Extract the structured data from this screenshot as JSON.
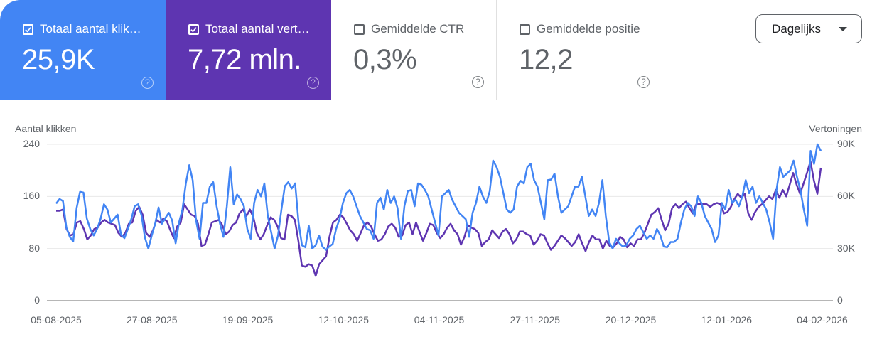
{
  "cards": [
    {
      "label": "Totaal aantal klik…",
      "value": "25,9K",
      "checked": true,
      "color": "#4285f4"
    },
    {
      "label": "Totaal aantal vert…",
      "value": "7,72 mln.",
      "checked": true,
      "color": "#5e35b1"
    },
    {
      "label": "Gemiddelde CTR",
      "value": "0,3%",
      "checked": false
    },
    {
      "label": "Gemiddelde positie",
      "value": "12,2",
      "checked": false
    }
  ],
  "help_glyph": "?",
  "granularity": {
    "selected": "Dagelijks"
  },
  "chart_data": {
    "type": "line",
    "title": "",
    "xlabel": "",
    "ylabel": "Aantal klikken",
    "ylabel_right": "Vertoningen",
    "ylim": [
      0,
      240
    ],
    "ylim_right": [
      0,
      90000
    ],
    "yticks": [
      "0",
      "80",
      "160",
      "240"
    ],
    "yticks_right": [
      "0",
      "30K",
      "60K",
      "90K"
    ],
    "grid": true,
    "legend": "none",
    "x_ticks": [
      "05-08-2025",
      "27-08-2025",
      "19-09-2025",
      "12-10-2025",
      "04-11-2025",
      "27-11-2025",
      "20-12-2025",
      "12-01-2026",
      "04-02-2026"
    ],
    "x_start": "05-08-2025",
    "x_end": "06-02-2026",
    "series": [
      {
        "name": "Totaal aantal klikken",
        "axis": "left",
        "color": "#4285f4",
        "values": [
          149,
          156,
          153,
          112,
          98,
          91,
          142,
          167,
          166,
          126,
          110,
          100,
          110,
          125,
          148,
          140,
          120,
          126,
          132,
          101,
          96,
          110,
          125,
          145,
          148,
          131,
          97,
          80,
          100,
          118,
          143,
          118,
          127,
          135,
          123,
          88,
          120,
          140,
          180,
          208,
          185,
          123,
          95,
          150,
          150,
          175,
          182,
          145,
          118,
          98,
          145,
          205,
          148,
          163,
          156,
          145,
          110,
          95,
          150,
          170,
          160,
          180,
          130,
          105,
          80,
          100,
          140,
          176,
          182,
          172,
          180,
          120,
          85,
          82,
          115,
          80,
          85,
          100,
          83,
          78,
          83,
          87,
          110,
          125,
          150,
          165,
          170,
          160,
          145,
          130,
          120,
          110,
          108,
          95,
          150,
          158,
          140,
          170,
          150,
          160,
          142,
          95,
          145,
          168,
          170,
          145,
          180,
          178,
          170,
          160,
          140,
          120,
          100,
          160,
          165,
          170,
          155,
          145,
          135,
          130,
          125,
          98,
          135,
          150,
          175,
          160,
          150,
          168,
          215,
          205,
          190,
          165,
          140,
          135,
          140,
          175,
          184,
          180,
          205,
          210,
          185,
          175,
          150,
          125,
          185,
          186,
          195,
          160,
          135,
          140,
          145,
          160,
          175,
          175,
          190,
          160,
          130,
          140,
          130,
          150,
          185,
          130,
          90,
          80,
          95,
          88,
          83,
          85,
          95,
          100,
          110,
          115,
          105,
          95,
          100,
          95,
          110,
          100,
          83,
          82,
          90,
          90,
          95,
          120,
          140,
          150,
          145,
          130,
          160,
          150,
          130,
          120,
          110,
          90,
          100,
          150,
          140,
          170,
          150,
          155,
          145,
          160,
          185,
          165,
          175,
          150,
          160,
          150,
          140,
          120,
          95,
          170,
          205,
          190,
          195,
          200,
          215,
          190,
          170,
          140,
          115,
          230,
          210,
          240,
          230
        ]
      },
      {
        "name": "Totaal aantal vertoningen",
        "axis": "right",
        "color": "#5e35b1",
        "values": [
          51750,
          51750,
          52500,
          41250,
          37500,
          38250,
          45000,
          45750,
          41250,
          35250,
          37500,
          41250,
          42000,
          45000,
          46500,
          45000,
          44250,
          43500,
          39000,
          36750,
          39000,
          44250,
          45000,
          51750,
          54000,
          49500,
          39000,
          36750,
          40500,
          46500,
          45000,
          47250,
          45750,
          40500,
          36000,
          42750,
          45000,
          55500,
          52500,
          49500,
          48750,
          44250,
          31500,
          32250,
          38250,
          45000,
          45750,
          46500,
          43500,
          38250,
          39750,
          43500,
          45000,
          50250,
          52500,
          48750,
          52500,
          48000,
          39000,
          35250,
          38250,
          43500,
          48000,
          46500,
          42750,
          36000,
          35250,
          49500,
          48750,
          46500,
          34500,
          20250,
          19500,
          21000,
          20250,
          14250,
          21000,
          23250,
          25500,
          36750,
          45000,
          46500,
          49500,
          48000,
          44250,
          40500,
          38250,
          34500,
          39000,
          43500,
          45000,
          42750,
          38250,
          34500,
          35250,
          38250,
          42750,
          44250,
          42000,
          36750,
          37500,
          43500,
          45000,
          38250,
          45000,
          39750,
          34500,
          39000,
          44250,
          43500,
          39000,
          36000,
          38250,
          42000,
          44250,
          40500,
          38250,
          32250,
          36750,
          43500,
          42000,
          41250,
          39000,
          31500,
          33750,
          35250,
          40500,
          38250,
          36000,
          39750,
          41250,
          38250,
          33000,
          35250,
          39750,
          39750,
          38250,
          37500,
          32250,
          34500,
          38250,
          37500,
          33000,
          29250,
          31500,
          34500,
          37500,
          36000,
          33750,
          31500,
          33750,
          38250,
          33000,
          28500,
          33750,
          37500,
          35250,
          35250,
          30000,
          34500,
          31500,
          30750,
          33000,
          36750,
          35250,
          30750,
          33000,
          31500,
          35250,
          35250,
          39000,
          44250,
          49500,
          51000,
          53250,
          46500,
          40500,
          44250,
          53250,
          55500,
          53250,
          55500,
          57000,
          53250,
          50250,
          55500,
          55500,
          55500,
          55500,
          54000,
          55500,
          56250,
          55500,
          50250,
          51000,
          54000,
          58500,
          61500,
          59250,
          61500,
          50250,
          46500,
          51000,
          54000,
          55500,
          57750,
          60000,
          58500,
          63750,
          59250,
          63750,
          60000,
          66750,
          73500,
          66750,
          61500,
          67500,
          73500,
          80250,
          69000,
          61500,
          76500
        ]
      }
    ]
  }
}
